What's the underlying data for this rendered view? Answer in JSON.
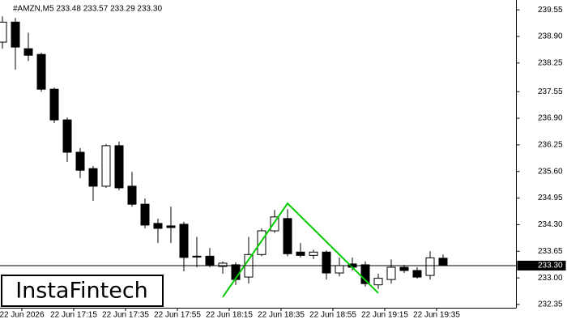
{
  "chart_data": {
    "type": "candlestick",
    "title": "#AMZN,M5  233.48 233.57 233.29 233.30",
    "watermark": "InstaFintech",
    "categories": [
      null,
      "22 Jun 2026",
      null,
      null,
      null,
      "22 Jun 17:15",
      null,
      null,
      null,
      "22 Jun 17:35",
      null,
      null,
      null,
      "22 Jun 17:55",
      null,
      null,
      null,
      "22 Jun 18:15",
      null,
      null,
      null,
      "22 Jun 18:35",
      null,
      null,
      null,
      "22 Jun 18:55",
      null,
      null,
      null,
      "22 Jun 19:15",
      null,
      null,
      null,
      "22 Jun 19:35",
      null
    ],
    "open": [
      238.76,
      239.25,
      238.6,
      238.46,
      237.61,
      236.86,
      236.07,
      235.67,
      235.24,
      236.23,
      235.24,
      234.8,
      234.33,
      234.27,
      234.31,
      233.53,
      233.53,
      233.28,
      233.32,
      233.02,
      233.57,
      234.15,
      234.45,
      233.63,
      233.55,
      233.63,
      233.12,
      233.34,
      233.32,
      232.83,
      232.96,
      233.26,
      233.18,
      233.06,
      233.48
    ],
    "high": [
      239.39,
      239.35,
      238.99,
      238.5,
      237.65,
      236.92,
      236.17,
      235.73,
      236.27,
      236.33,
      235.59,
      234.94,
      234.45,
      234.74,
      234.37,
      234.0,
      233.73,
      233.4,
      233.38,
      234.0,
      234.21,
      234.66,
      234.68,
      233.85,
      233.69,
      233.67,
      233.5,
      233.5,
      233.4,
      233.1,
      233.45,
      233.32,
      233.26,
      233.65,
      233.57
    ],
    "low": [
      238.6,
      238.09,
      238.3,
      237.55,
      236.78,
      235.83,
      235.44,
      234.88,
      235.2,
      235.14,
      234.74,
      234.21,
      233.85,
      233.85,
      233.16,
      233.26,
      233.26,
      233.1,
      232.83,
      232.86,
      233.53,
      234.1,
      233.53,
      233.5,
      233.46,
      232.96,
      233.04,
      233.18,
      232.79,
      232.73,
      232.86,
      233.12,
      232.98,
      232.96,
      233.29
    ],
    "close": [
      239.25,
      238.64,
      238.44,
      237.61,
      236.86,
      236.07,
      235.63,
      235.24,
      236.23,
      235.2,
      234.8,
      234.29,
      234.21,
      234.23,
      233.5,
      233.51,
      233.32,
      233.36,
      232.96,
      233.57,
      234.15,
      234.49,
      233.59,
      233.55,
      233.63,
      233.12,
      233.3,
      233.26,
      232.86,
      232.99,
      233.26,
      233.18,
      233.02,
      233.49,
      233.3
    ],
    "up_color": "#ffffff",
    "down_color": "#000000",
    "ylim": [
      232.27,
      239.79
    ],
    "yticks": [
      239.55,
      {
        "value": 238.9,
        "label": "238.90"
      },
      238.25,
      237.55,
      {
        "value": 236.9,
        "label": "236.90"
      },
      236.25,
      {
        "value": 235.6,
        "label": "235.60"
      },
      234.95,
      {
        "value": 234.3,
        "label": "234.30"
      },
      233.65,
      {
        "value": 233,
        "label": "233.00"
      },
      232.35
    ],
    "current_price": {
      "value": 233.3,
      "label": "233.30"
    },
    "pattern": {
      "color": "#00cc00",
      "x": [
        17,
        22,
        29
      ],
      "values": [
        232.53,
        234.82,
        232.63
      ]
    },
    "grid": false
  }
}
